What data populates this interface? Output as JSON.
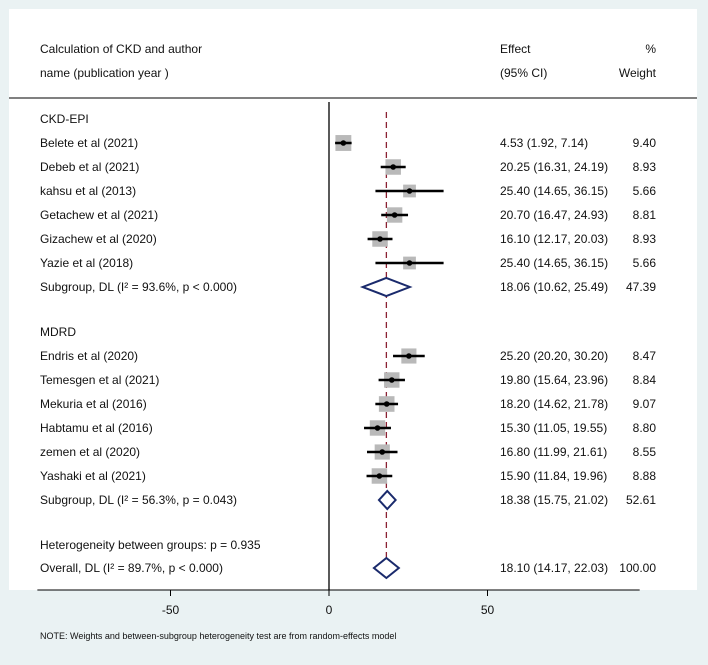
{
  "header": {
    "col1_line1": "Calculation of CKD and author",
    "col1_line2": "name (publication year )",
    "effect_line1": "Effect",
    "effect_line2": "(95% CI)",
    "weight_line1": "%",
    "weight_line2": "Weight"
  },
  "footer": {
    "heterogeneity": "Heterogeneity between groups: p = 0.935",
    "note": "NOTE: Weights and between-subgroup heterogeneity test are from random-effects model"
  },
  "chart_data": {
    "type": "forest",
    "x_ticks": [
      -50,
      0,
      50
    ],
    "xlim": [
      -92,
      98
    ],
    "overall_effect_line": 18.1,
    "groups": [
      {
        "name": "CKD-EPI",
        "studies": [
          {
            "label": "Belete et al (2021)",
            "effect": 4.53,
            "lo": 1.92,
            "hi": 7.14,
            "ci_text": "4.53 (1.92, 7.14)",
            "weight": "9.40"
          },
          {
            "label": "Debeb et al  (2021)",
            "effect": 20.25,
            "lo": 16.31,
            "hi": 24.19,
            "ci_text": "20.25 (16.31, 24.19)",
            "weight": "8.93"
          },
          {
            "label": "kahsu et al (2013)",
            "effect": 25.4,
            "lo": 14.65,
            "hi": 36.15,
            "ci_text": "25.40 (14.65, 36.15)",
            "weight": "5.66"
          },
          {
            "label": "Getachew et al (2021)",
            "effect": 20.7,
            "lo": 16.47,
            "hi": 24.93,
            "ci_text": "20.70 (16.47, 24.93)",
            "weight": "8.81"
          },
          {
            "label": "Gizachew et al (2020)",
            "effect": 16.1,
            "lo": 12.17,
            "hi": 20.03,
            "ci_text": "16.10 (12.17, 20.03)",
            "weight": "8.93"
          },
          {
            "label": "Yazie et al  (2018)",
            "effect": 25.4,
            "lo": 14.65,
            "hi": 36.15,
            "ci_text": "25.40 (14.65, 36.15)",
            "weight": "5.66"
          }
        ],
        "subgroup": {
          "label": "Subgroup, DL (I² = 93.6%, p < 0.000)",
          "effect": 18.06,
          "lo": 10.62,
          "hi": 25.49,
          "ci_text": "18.06 (10.62, 25.49)",
          "weight": "47.39"
        }
      },
      {
        "name": "MDRD",
        "studies": [
          {
            "label": "Endris  et al  (2020)",
            "effect": 25.2,
            "lo": 20.2,
            "hi": 30.2,
            "ci_text": "25.20 (20.20, 30.20)",
            "weight": "8.47"
          },
          {
            "label": "Temesgen et al  (2021)",
            "effect": 19.8,
            "lo": 15.64,
            "hi": 23.96,
            "ci_text": "19.80 (15.64, 23.96)",
            "weight": "8.84"
          },
          {
            "label": "Mekuria et al (2016)",
            "effect": 18.2,
            "lo": 14.62,
            "hi": 21.78,
            "ci_text": "18.20 (14.62, 21.78)",
            "weight": "9.07"
          },
          {
            "label": "Habtamu et al (2016)",
            "effect": 15.3,
            "lo": 11.05,
            "hi": 19.55,
            "ci_text": "15.30 (11.05, 19.55)",
            "weight": "8.80"
          },
          {
            "label": "zemen et al (2020)",
            "effect": 16.8,
            "lo": 11.99,
            "hi": 21.61,
            "ci_text": "16.80 (11.99, 21.61)",
            "weight": "8.55"
          },
          {
            "label": "Yashaki et al (2021)",
            "effect": 15.9,
            "lo": 11.84,
            "hi": 19.96,
            "ci_text": "15.90 (11.84, 19.96)",
            "weight": "8.88"
          }
        ],
        "subgroup": {
          "label": "Subgroup, DL (I² = 56.3%, p = 0.043)",
          "effect": 18.38,
          "lo": 15.75,
          "hi": 21.02,
          "ci_text": "18.38 (15.75, 21.02)",
          "weight": "52.61"
        }
      }
    ],
    "overall": {
      "label": "Overall, DL (I² = 89.7%, p < 0.000)",
      "effect": 18.1,
      "lo": 14.17,
      "hi": 22.03,
      "ci_text": "18.10 (14.17, 22.03)",
      "weight": "100.00"
    },
    "colors": {
      "diamond": "#1a2a6c",
      "null_line": "#000000",
      "effect_line": "#8b2233",
      "box": "#b9b9b9",
      "point": "#000000"
    }
  }
}
